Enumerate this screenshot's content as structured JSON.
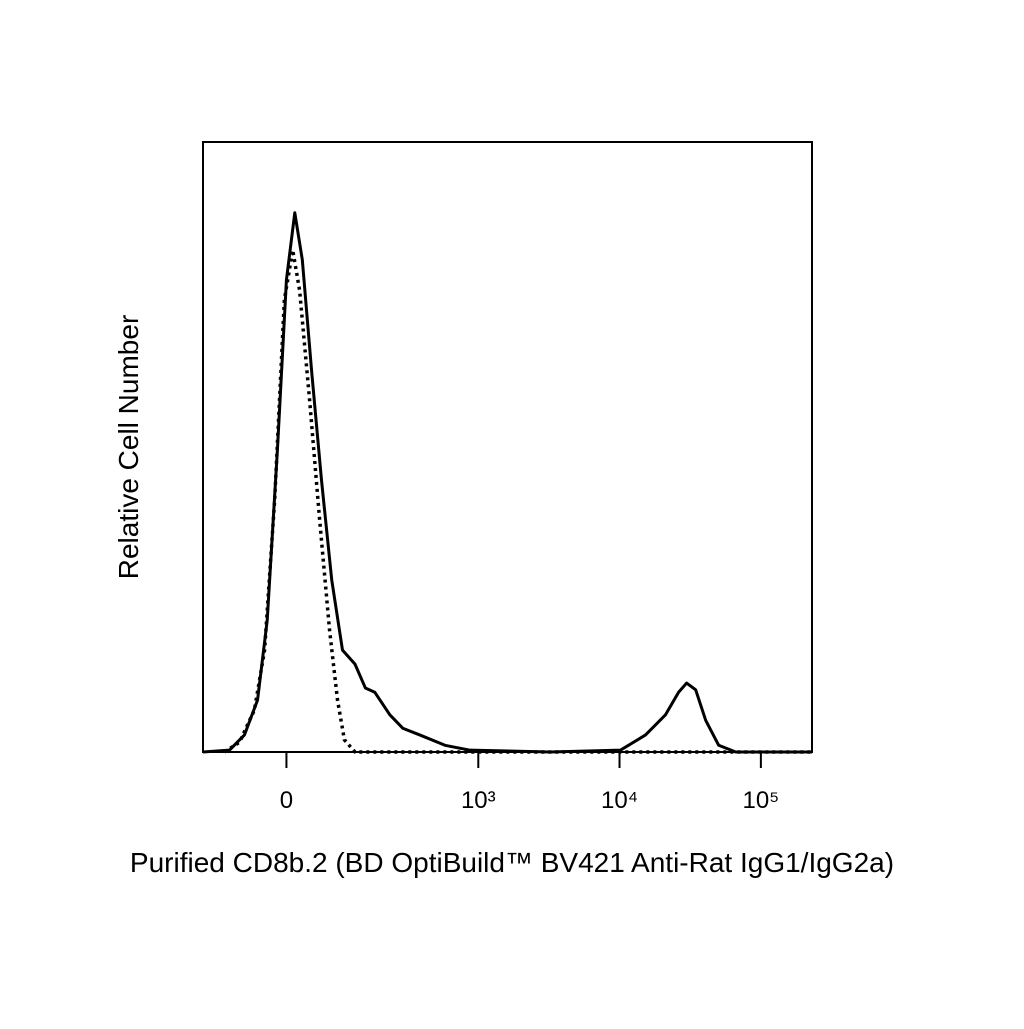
{
  "chart_data": {
    "type": "line",
    "xlabel": "Purified CD8b.2 (BD OptiBuild™ BV421 Anti-Rat IgG1/IgG2a)",
    "ylabel": "Relative Cell Number",
    "xscale": "biexponential",
    "xlim": [
      -160,
      230000
    ],
    "xticks": [
      0,
      {
        "value": 1000,
        "label": "10³"
      },
      {
        "value": 10000,
        "label": "10⁴"
      },
      {
        "value": 100000,
        "label": "10⁵"
      }
    ],
    "ylim": [
      0,
      100
    ],
    "series": [
      {
        "color": "#000000",
        "style": "solid",
        "x": [
          -160,
          -94,
          -65,
          -43,
          -28,
          -13,
          0,
          12,
          23,
          37,
          53,
          71,
          92,
          120,
          147,
          175,
          229,
          286,
          381,
          579,
          873,
          3230,
          10150,
          15280,
          21150,
          26180,
          29830,
          34580,
          40700,
          50300,
          66400,
          230000
        ],
        "values": [
          0,
          0.3,
          2.8,
          8.5,
          21.6,
          49.5,
          77.4,
          88.4,
          80.7,
          62.6,
          44.6,
          28.2,
          16.7,
          14.4,
          10.5,
          9.8,
          6.1,
          3.9,
          2.8,
          1.1,
          0.3,
          0,
          0.3,
          2.8,
          6.1,
          9.8,
          11.3,
          10.2,
          5.2,
          1.1,
          0,
          0
        ]
      },
      {
        "color": "#000000",
        "style": "dotted",
        "x": [
          -105,
          -74,
          -48,
          -32,
          -17,
          -3,
          9,
          19,
          34,
          50,
          67,
          82,
          96,
          120,
          230000
        ],
        "values": [
          0,
          1.6,
          6.9,
          16.7,
          41.3,
          74.1,
          82.3,
          75.7,
          57.7,
          38.0,
          20.0,
          8.5,
          2.0,
          0,
          0
        ]
      }
    ]
  }
}
